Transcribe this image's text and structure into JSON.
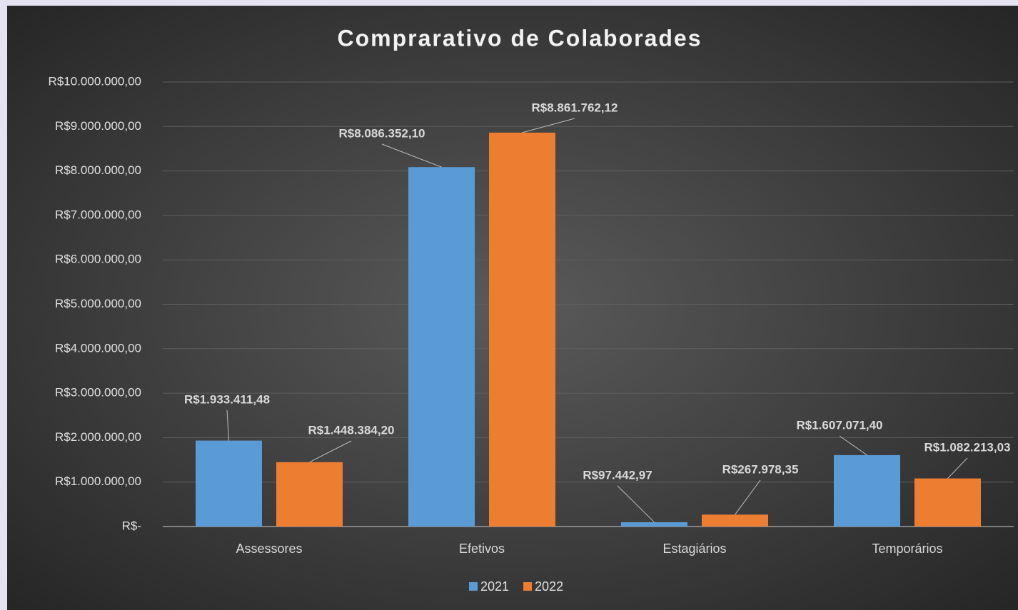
{
  "chart_data": {
    "type": "bar",
    "title": "Comprarativo de Colaborades",
    "categories": [
      "Assessores",
      "Efetivos",
      "Estagiários",
      "Temporários"
    ],
    "series": [
      {
        "name": "2021",
        "color": "#5b9bd5",
        "values": [
          1933411.48,
          8086352.1,
          97442.97,
          1607071.4
        ],
        "value_labels": [
          "R$1.933.411,48",
          "R$8.086.352,10",
          "R$97.442,97",
          "R$1.607.071,40"
        ]
      },
      {
        "name": "2022",
        "color": "#ed7d31",
        "values": [
          1448384.2,
          8861762.12,
          267978.35,
          1082213.03
        ],
        "value_labels": [
          "R$1.448.384,20",
          "R$8.861.762,12",
          "R$267.978,35",
          "R$1.082.213,03"
        ]
      }
    ],
    "ylim": [
      0,
      10000000
    ],
    "yticks": [
      {
        "value": 0,
        "label": "R$-"
      },
      {
        "value": 1000000,
        "label": "R$1.000.000,00"
      },
      {
        "value": 2000000,
        "label": "R$2.000.000,00"
      },
      {
        "value": 3000000,
        "label": "R$3.000.000,00"
      },
      {
        "value": 4000000,
        "label": "R$4.000.000,00"
      },
      {
        "value": 5000000,
        "label": "R$5.000.000,00"
      },
      {
        "value": 6000000,
        "label": "R$6.000.000,00"
      },
      {
        "value": 7000000,
        "label": "R$7.000.000,00"
      },
      {
        "value": 8000000,
        "label": "R$8.000.000,00"
      },
      {
        "value": 9000000,
        "label": "R$9.000.000,00"
      },
      {
        "value": 10000000,
        "label": "R$10.000.000,00"
      }
    ],
    "grid": true,
    "legend": "bottom"
  }
}
